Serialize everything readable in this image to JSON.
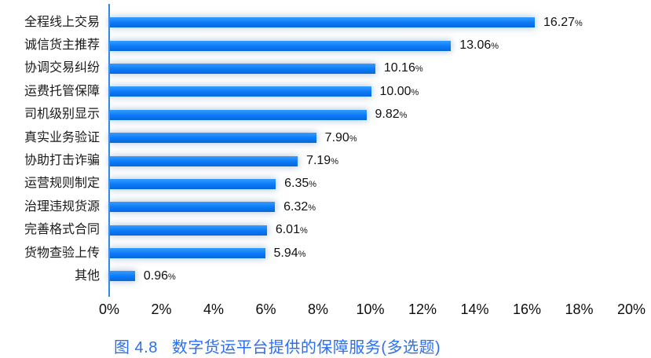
{
  "chart_data": {
    "type": "bar",
    "orientation": "horizontal",
    "title": "图 4.8　数字货运平台提供的保障服务(多选题)",
    "categories": [
      "全程线上交易",
      "诚信货主推荐",
      "协调交易纠纷",
      "运费托管保障",
      "司机级别显示",
      "真实业务验证",
      "协助打击诈骗",
      "运营规则制定",
      "治理违规货源",
      "完善格式合同",
      "货物查验上传",
      "其他"
    ],
    "values": [
      16.27,
      13.06,
      10.16,
      10.0,
      9.82,
      7.9,
      7.19,
      6.35,
      6.32,
      6.01,
      5.94,
      0.96
    ],
    "value_labels": [
      "16.27",
      "13.06",
      "10.16",
      "10.00",
      "9.82",
      "7.90",
      "7.19",
      "6.35",
      "6.32",
      "6.01",
      "5.94",
      "0.96"
    ],
    "unit": "%",
    "xlabel": "",
    "ylabel": "",
    "xlim": [
      0,
      20
    ],
    "x_ticks": [
      "0%",
      "2%",
      "4%",
      "6%",
      "8%",
      "10%",
      "12%",
      "14%",
      "16%",
      "18%",
      "20%"
    ],
    "grid": false,
    "legend": false,
    "bar_color": "#0b79f5",
    "axis_color": "#2e86f2",
    "value_label_color": "#111111",
    "title_color": "#2b6ff0"
  },
  "caption": {
    "prefix": "图 4.8",
    "text": "数字货运平台提供的保障服务(多选题)"
  }
}
